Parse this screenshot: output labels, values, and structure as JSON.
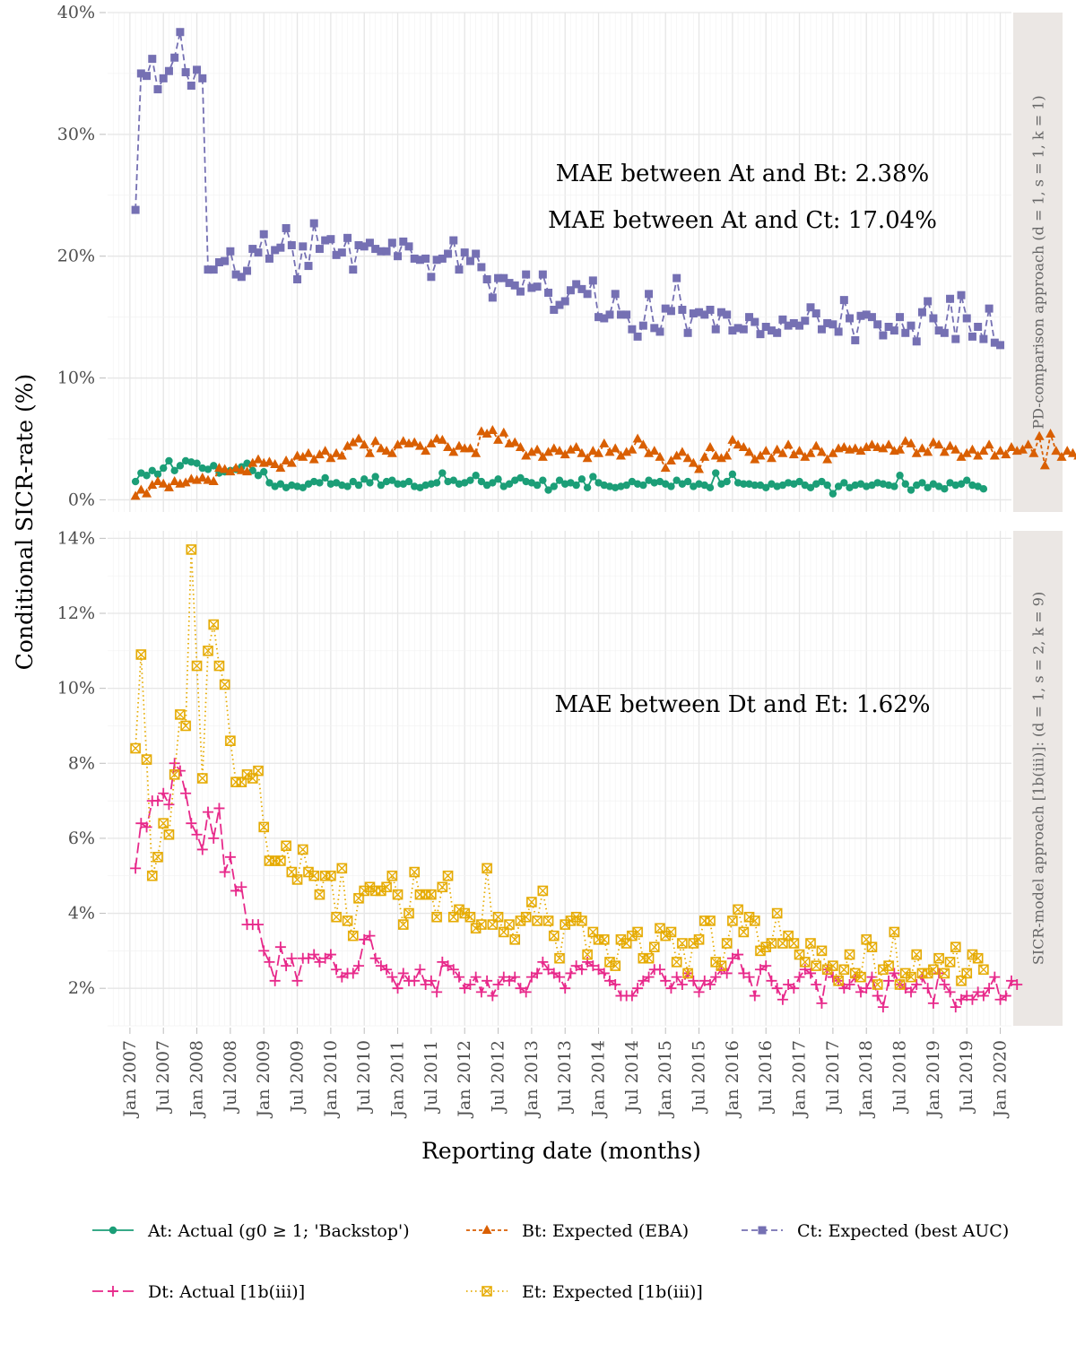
{
  "chart_data": {
    "type": "line",
    "xlabel": "Reporting date (months)",
    "ylabel": "Conditional SICR-rate (%)",
    "x_axis": {
      "range": [
        "2006-09",
        "2020-03"
      ],
      "tick_dates": [
        "2007-01",
        "2007-07",
        "2008-01",
        "2008-07",
        "2009-01",
        "2009-07",
        "2010-01",
        "2010-07",
        "2011-01",
        "2011-07",
        "2012-01",
        "2012-07",
        "2013-01",
        "2013-07",
        "2014-01",
        "2014-07",
        "2015-01",
        "2015-07",
        "2016-01",
        "2016-07",
        "2017-01",
        "2017-07",
        "2018-01",
        "2018-07",
        "2019-01",
        "2019-07",
        "2020-01"
      ],
      "tick_labels": [
        "Jan 2007",
        "Jul 2007",
        "Jan 2008",
        "Jul 2008",
        "Jan 2009",
        "Jul 2009",
        "Jan 2010",
        "Jul 2010",
        "Jan 2011",
        "Jul 2011",
        "Jan 2012",
        "Jul 2012",
        "Jan 2013",
        "Jul 2013",
        "Jan 2014",
        "Jul 2014",
        "Jan 2015",
        "Jul 2015",
        "Jan 2016",
        "Jul 2016",
        "Jan 2017",
        "Jul 2017",
        "Jan 2018",
        "Jul 2018",
        "Jan 2019",
        "Jul 2019",
        "Jan 2020"
      ]
    },
    "grid": true,
    "legend_position": "bottom",
    "panels": [
      {
        "strip_label": "PD-comparison approach (d = 1, s = 1, k = 1)",
        "ylim": [
          -1,
          40
        ],
        "y_ticks": [
          0,
          10,
          20,
          30,
          40
        ],
        "y_tick_labels": [
          "0%",
          "10%",
          "20%",
          "30%",
          "40%"
        ],
        "annotations": [
          "MAE between At and Bt: 2.38%",
          "MAE between At and Ct: 17.04%"
        ],
        "series": [
          {
            "key": "A",
            "start": "2007-02",
            "values": [
              1.5,
              2.2,
              2.0,
              2.4,
              2.1,
              2.6,
              3.2,
              2.4,
              2.8,
              3.2,
              3.1,
              3.0,
              2.6,
              2.5,
              2.8,
              2.2,
              2.3,
              2.4,
              2.5,
              2.7,
              3.0,
              2.4,
              2.0,
              2.3,
              1.4,
              1.1,
              1.3,
              1.0,
              1.2,
              1.1,
              1.0,
              1.3,
              1.5,
              1.4,
              1.8,
              1.3,
              1.4,
              1.2,
              1.1,
              1.5,
              1.2,
              1.7,
              1.4,
              1.9,
              1.2,
              1.5,
              1.6,
              1.3,
              1.3,
              1.5,
              1.1,
              1.0,
              1.2,
              1.3,
              1.4,
              2.2,
              1.5,
              1.6,
              1.3,
              1.4,
              1.6,
              2.0,
              1.5,
              1.2,
              1.4,
              1.7,
              1.1,
              1.3,
              1.6,
              1.8,
              1.5,
              1.4,
              1.2,
              1.6,
              0.8,
              1.1,
              1.6,
              1.3,
              1.4,
              1.2,
              1.7,
              1.0,
              1.9,
              1.4,
              1.2,
              1.1,
              1.0,
              1.1,
              1.2,
              1.5,
              1.3,
              1.2,
              1.6,
              1.4,
              1.5,
              1.3,
              1.1,
              1.6,
              1.3,
              1.5,
              1.1,
              1.3,
              1.2,
              1.0,
              2.2,
              1.3,
              1.5,
              2.1,
              1.4,
              1.3,
              1.3,
              1.2,
              1.2,
              1.0,
              1.3,
              1.1,
              1.2,
              1.4,
              1.3,
              1.5,
              1.2,
              1.0,
              1.3,
              1.5,
              1.2,
              0.5,
              1.1,
              1.4,
              1.0,
              1.2,
              1.3,
              1.1,
              1.2,
              1.4,
              1.3,
              1.2,
              1.1,
              2.0,
              1.3,
              0.8,
              1.2,
              1.4,
              1.0,
              1.3,
              1.1,
              0.9,
              1.4,
              1.2,
              1.3,
              1.6,
              1.2,
              1.1,
              0.9
            ]
          },
          {
            "key": "B",
            "start": "2007-02",
            "values": [
              0.3,
              0.8,
              0.5,
              1.2,
              1.5,
              1.3,
              1.0,
              1.5,
              1.3,
              1.4,
              1.7,
              1.6,
              1.8,
              1.6,
              1.5,
              2.6,
              2.5,
              2.3,
              2.6,
              2.4,
              2.3,
              3.0,
              3.3,
              3.0,
              3.1,
              2.9,
              2.6,
              3.2,
              3.0,
              3.6,
              3.5,
              3.8,
              3.3,
              3.7,
              4.0,
              3.4,
              3.8,
              3.6,
              4.4,
              4.7,
              5.0,
              4.5,
              3.8,
              4.8,
              4.2,
              4.0,
              3.8,
              4.5,
              4.8,
              4.6,
              4.7,
              4.4,
              4.0,
              4.6,
              5.0,
              4.9,
              4.3,
              3.9,
              4.4,
              4.2,
              4.2,
              3.8,
              5.6,
              5.4,
              5.7,
              4.9,
              5.5,
              4.6,
              4.7,
              4.3,
              3.6,
              3.9,
              4.1,
              3.5,
              3.9,
              4.2,
              4.0,
              3.7,
              4.1,
              4.3,
              3.8,
              3.4,
              4.0,
              3.8,
              4.6,
              3.9,
              4.2,
              3.6,
              3.9,
              4.1,
              5.0,
              4.5,
              3.8,
              4.0,
              3.5,
              2.6,
              3.2,
              3.6,
              3.9,
              3.4,
              3.0,
              2.5,
              3.5,
              4.3,
              3.6,
              3.4,
              3.6,
              4.9,
              4.5,
              4.3,
              3.9,
              3.3,
              3.6,
              4.0,
              3.4,
              4.1,
              3.8,
              4.5,
              3.7,
              4.0,
              3.5,
              3.8,
              4.4,
              3.9,
              3.3,
              3.8,
              4.2,
              4.3,
              4.1,
              4.2,
              4.0,
              4.3,
              4.5,
              4.3,
              4.2,
              4.5,
              4.0,
              4.1,
              4.8,
              4.6,
              3.8,
              4.2,
              3.9,
              4.7,
              4.5,
              3.9,
              4.4,
              4.1,
              3.5,
              3.8,
              4.1,
              3.6,
              4.0,
              4.5,
              3.6,
              4.0,
              3.7,
              4.3,
              4.0,
              4.1,
              4.5,
              3.8,
              5.2,
              2.8,
              5.4,
              4.0,
              3.5,
              4.0,
              3.8,
              3.6,
              4.3,
              4.0,
              3.7
            ]
          },
          {
            "key": "C",
            "start": "2007-02",
            "values": [
              23.8,
              35.0,
              34.8,
              36.2,
              33.7,
              34.6,
              35.2,
              36.3,
              38.4,
              35.1,
              34.0,
              35.3,
              34.6,
              18.9,
              18.9,
              19.5,
              19.6,
              20.4,
              18.5,
              18.3,
              18.8,
              20.6,
              20.3,
              21.8,
              19.8,
              20.5,
              20.7,
              22.3,
              20.9,
              18.1,
              20.8,
              19.2,
              22.7,
              20.6,
              21.3,
              21.4,
              20.1,
              20.3,
              21.5,
              18.9,
              20.9,
              20.8,
              21.1,
              20.6,
              20.4,
              20.4,
              21.1,
              20.0,
              21.2,
              20.8,
              19.8,
              19.7,
              19.8,
              18.3,
              19.7,
              19.8,
              20.2,
              21.3,
              18.9,
              20.3,
              19.6,
              20.2,
              19.1,
              18.1,
              16.6,
              18.2,
              18.2,
              17.8,
              17.6,
              17.1,
              18.5,
              17.4,
              17.5,
              18.5,
              17.0,
              15.6,
              16.0,
              16.3,
              17.2,
              17.7,
              17.3,
              16.9,
              18.0,
              15.0,
              14.9,
              15.2,
              16.9,
              15.2,
              15.2,
              14.0,
              13.4,
              14.3,
              16.9,
              14.1,
              13.8,
              15.7,
              15.5,
              18.2,
              15.6,
              13.7,
              15.3,
              15.4,
              15.2,
              15.6,
              14.0,
              15.4,
              15.2,
              13.9,
              14.1,
              14.0,
              15.0,
              14.6,
              13.6,
              14.2,
              13.9,
              13.7,
              14.8,
              14.3,
              14.5,
              14.3,
              14.7,
              15.8,
              15.3,
              14.0,
              14.5,
              14.4,
              13.8,
              16.4,
              14.9,
              13.1,
              15.1,
              15.2,
              15.0,
              14.4,
              13.5,
              14.2,
              13.9,
              15.0,
              13.7,
              14.3,
              13.0,
              15.4,
              16.3,
              14.9,
              13.9,
              13.7,
              16.5,
              13.2,
              16.8,
              14.9,
              13.4,
              14.2,
              13.2,
              15.7,
              12.9,
              12.7
            ]
          }
        ]
      },
      {
        "strip_label": "SICR-model approach [1b(iii)]: (d = 1, s = 2, k = 9)",
        "ylim": [
          1,
          14.2
        ],
        "y_ticks": [
          2,
          4,
          6,
          8,
          10,
          12,
          14
        ],
        "y_tick_labels": [
          "2%",
          "4%",
          "6%",
          "8%",
          "10%",
          "12%",
          "14%"
        ],
        "annotations": [
          "MAE between Dt and Et: 1.62%"
        ],
        "series": [
          {
            "key": "D",
            "start": "2007-02",
            "values": [
              5.2,
              6.4,
              6.3,
              7.0,
              7.0,
              7.2,
              6.9,
              8.0,
              7.8,
              7.2,
              6.4,
              6.1,
              5.7,
              6.7,
              6.0,
              6.8,
              5.1,
              5.5,
              4.6,
              4.7,
              3.7,
              3.7,
              3.7,
              3.0,
              2.7,
              2.2,
              3.1,
              2.6,
              2.8,
              2.2,
              2.8,
              2.8,
              2.9,
              2.7,
              2.8,
              2.9,
              2.5,
              2.3,
              2.4,
              2.4,
              2.6,
              3.3,
              3.4,
              2.8,
              2.6,
              2.5,
              2.3,
              2.0,
              2.4,
              2.2,
              2.2,
              2.5,
              2.1,
              2.2,
              1.9,
              2.7,
              2.6,
              2.5,
              2.3,
              2.0,
              2.1,
              2.3,
              1.9,
              2.2,
              1.8,
              2.1,
              2.3,
              2.2,
              2.3,
              2.0,
              1.9,
              2.3,
              2.4,
              2.7,
              2.5,
              2.4,
              2.3,
              2.0,
              2.4,
              2.6,
              2.5,
              2.7,
              2.6,
              2.5,
              2.4,
              2.2,
              2.1,
              1.8,
              1.8,
              1.8,
              2.0,
              2.2,
              2.3,
              2.5,
              2.5,
              2.2,
              2.0,
              2.3,
              2.1,
              2.4,
              2.2,
              1.9,
              2.2,
              2.1,
              2.3,
              2.5,
              2.4,
              2.8,
              2.9,
              2.4,
              2.3,
              1.8,
              2.5,
              2.6,
              2.2,
              2.0,
              1.7,
              2.1,
              2.0,
              2.3,
              2.5,
              2.4,
              2.1,
              1.6,
              2.5,
              2.3,
              2.2,
              2.0,
              2.1,
              2.3,
              1.9,
              2.0,
              2.3,
              1.8,
              1.5,
              2.2,
              2.4,
              2.1,
              2.0,
              1.9,
              2.1,
              2.3,
              2.0,
              1.6,
              2.4,
              2.1,
              1.9,
              1.5,
              1.7,
              1.8,
              1.7,
              1.9,
              1.8,
              2.0,
              2.3,
              1.7,
              1.8,
              2.2,
              2.1
            ]
          },
          {
            "key": "E",
            "start": "2007-02",
            "values": [
              8.4,
              10.9,
              8.1,
              5.0,
              5.5,
              6.4,
              6.1,
              7.7,
              9.3,
              9.0,
              13.7,
              10.6,
              7.6,
              11.0,
              11.7,
              10.6,
              10.1,
              8.6,
              7.5,
              7.5,
              7.7,
              7.6,
              7.8,
              6.3,
              5.4,
              5.4,
              5.4,
              5.8,
              5.1,
              4.9,
              5.7,
              5.1,
              5.0,
              4.5,
              5.0,
              5.0,
              3.9,
              5.2,
              3.8,
              3.4,
              4.4,
              4.6,
              4.7,
              4.6,
              4.6,
              4.7,
              5.0,
              4.5,
              3.7,
              4.0,
              5.1,
              4.5,
              4.5,
              4.5,
              3.9,
              4.7,
              5.0,
              3.9,
              4.1,
              4.0,
              3.9,
              3.6,
              3.7,
              5.2,
              3.7,
              3.9,
              3.5,
              3.7,
              3.3,
              3.8,
              3.9,
              4.3,
              3.8,
              4.6,
              3.8,
              3.4,
              2.8,
              3.7,
              3.8,
              3.9,
              3.8,
              2.9,
              3.5,
              3.3,
              3.3,
              2.7,
              2.6,
              3.3,
              3.2,
              3.4,
              3.5,
              2.8,
              2.8,
              3.1,
              3.6,
              3.4,
              3.5,
              2.7,
              3.2,
              2.4,
              3.2,
              3.3,
              3.8,
              3.8,
              2.7,
              2.6,
              3.2,
              3.8,
              4.1,
              3.5,
              3.9,
              3.8,
              3.0,
              3.1,
              3.2,
              4.0,
              3.2,
              3.4,
              3.2,
              2.9,
              2.7,
              3.2,
              2.6,
              3.0,
              2.5,
              2.6,
              2.2,
              2.5,
              2.9,
              2.4,
              2.3,
              3.3,
              3.1,
              2.1,
              2.5,
              2.6,
              3.5,
              2.1,
              2.4,
              2.3,
              2.9,
              2.4,
              2.4,
              2.5,
              2.8,
              2.4,
              2.7,
              3.1,
              2.2,
              2.4,
              2.9,
              2.8,
              2.5
            ]
          }
        ]
      }
    ],
    "legend": [
      {
        "key": "A",
        "text": "At: Actual (g0 ≥ 1; 'Backstop')",
        "color": "#1b9e77",
        "marker": "circle",
        "dash": "solid"
      },
      {
        "key": "B",
        "text": "Bt: Expected (EBA)",
        "color": "#d95f02",
        "marker": "triangle",
        "dash": "short-dash"
      },
      {
        "key": "C",
        "text": "Ct: Expected (best AUC)",
        "color": "#7570b3",
        "marker": "square",
        "dash": "dash"
      },
      {
        "key": "D",
        "text": "Dt: Actual [1b(iii)]",
        "color": "#e7298a",
        "marker": "plus",
        "dash": "long-dash"
      },
      {
        "key": "E",
        "text": "Et: Expected [1b(iii)]",
        "color": "#e6ab02",
        "marker": "square-x",
        "dash": "dotted"
      }
    ]
  }
}
